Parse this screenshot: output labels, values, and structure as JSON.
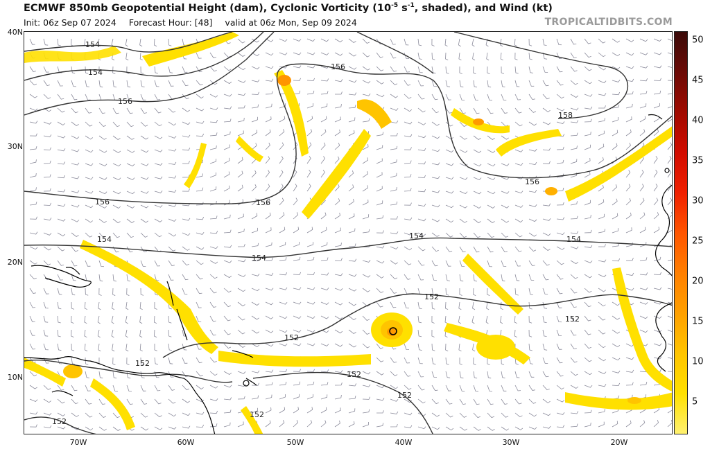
{
  "header": {
    "title_main": "ECMWF 850mb Geopotential Height (dam), Cyclonic Vorticity (10",
    "title_exp": "-5",
    "title_unit": " s",
    "title_exp2": "-1",
    "title_rest": ", shaded), and Wind (kt)",
    "init": "Init: 06z Sep 07 2024",
    "forecast_hour": "Forecast Hour: [48]",
    "valid": "valid at 06z Mon, Sep 09 2024",
    "brand": "TROPICALTIDBITS.COM"
  },
  "axes": {
    "lat_labels": [
      "40N",
      "30N",
      "20N",
      "10N"
    ],
    "lon_labels": [
      "70W",
      "60W",
      "50W",
      "40W",
      "30W",
      "20W"
    ]
  },
  "colorbar": {
    "ticks": [
      "50",
      "45",
      "40",
      "35",
      "30",
      "25",
      "20",
      "15",
      "10",
      "5"
    ],
    "colors": [
      "#fff170",
      "#ffe000",
      "#ffc400",
      "#ffa000",
      "#ff7f00",
      "#ff5500",
      "#f02000",
      "#d10c00",
      "#a00a00",
      "#6b0a05",
      "#3a0a08"
    ]
  },
  "contour_labels": [
    "152",
    "154",
    "156",
    "158"
  ],
  "map_colors": {
    "land": "#000000",
    "height_contour": "#333333",
    "wind_barb": "#8a8a9a"
  }
}
